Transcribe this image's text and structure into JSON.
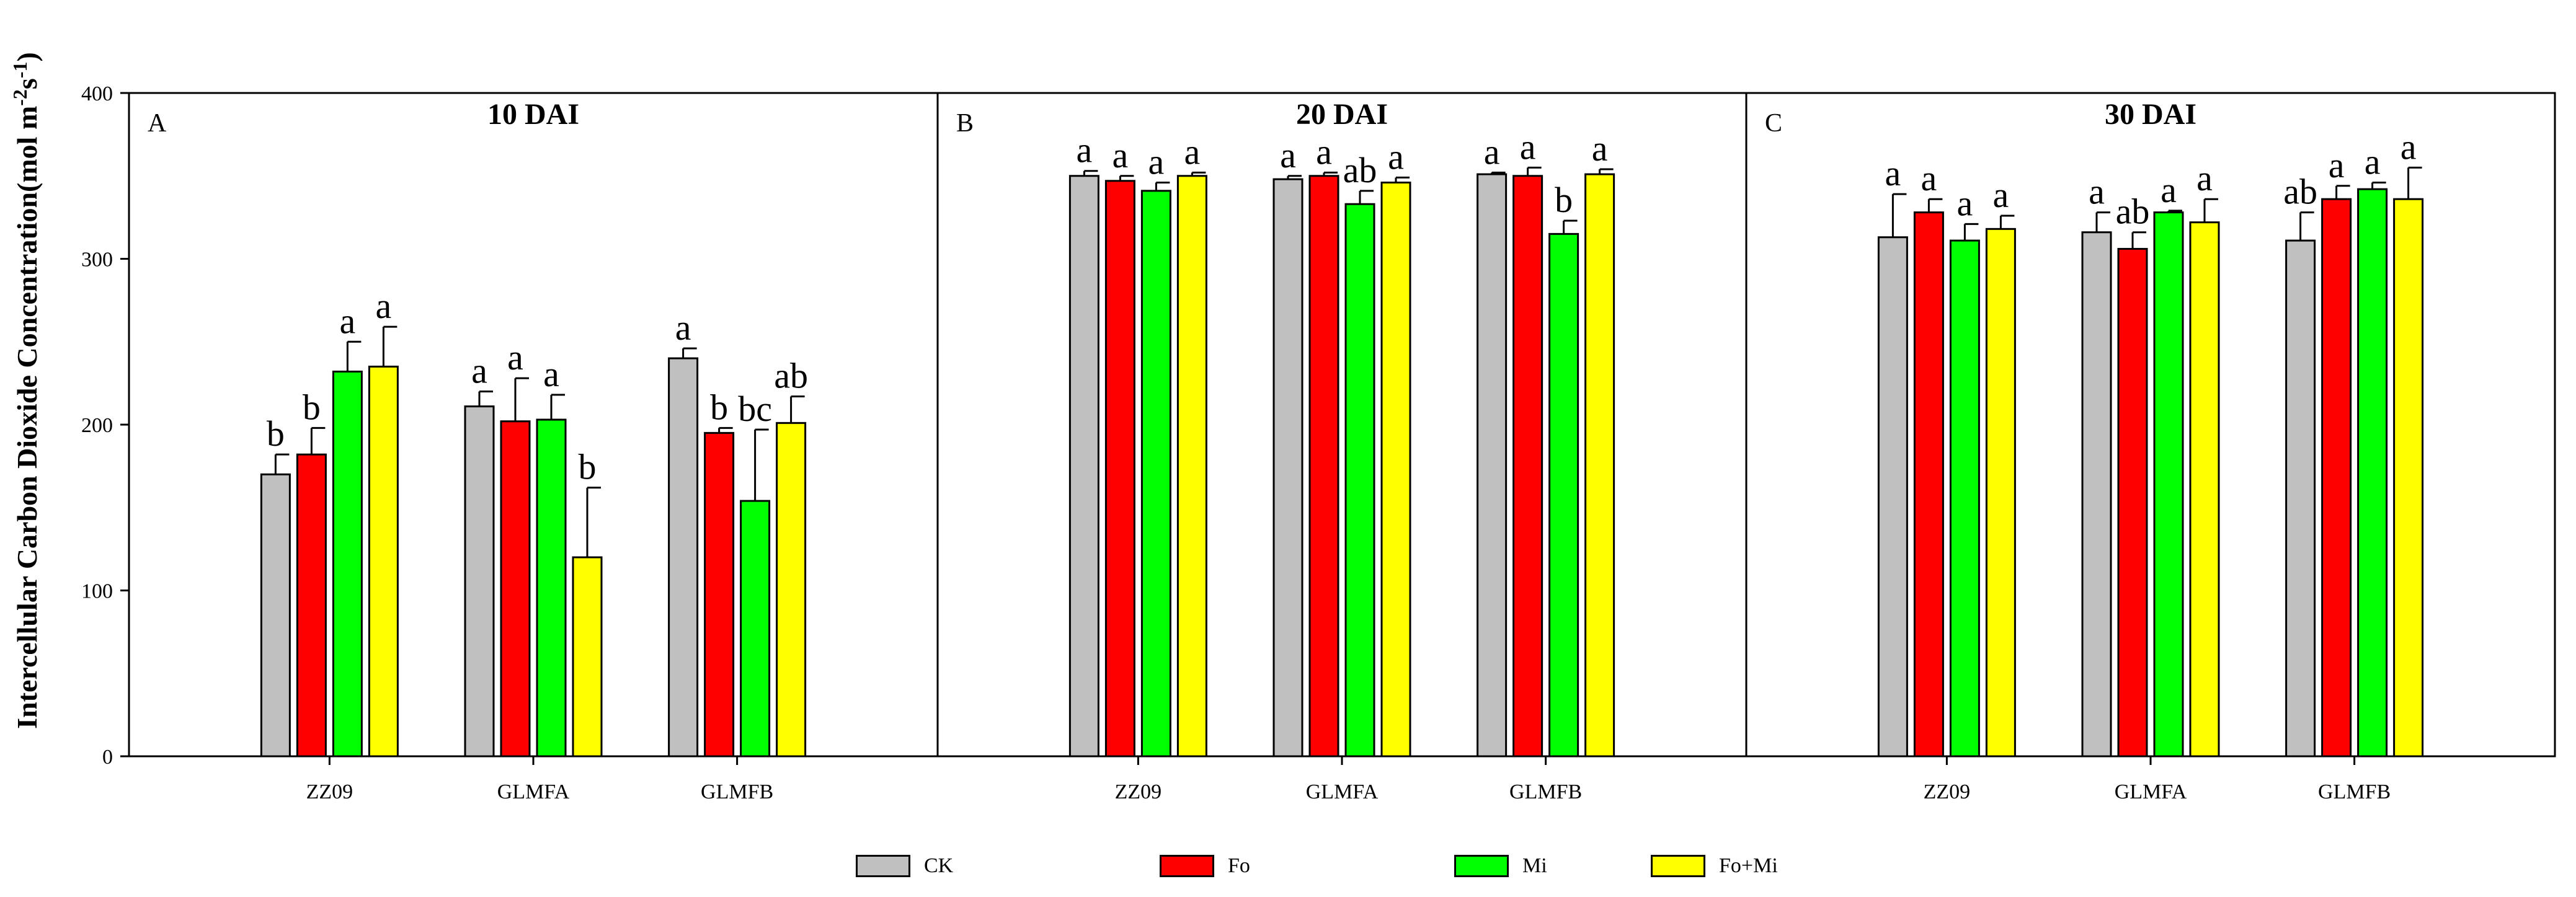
{
  "chart_data": {
    "type": "bar",
    "ylabel_prefix": "Intercellular Carbon Dioxide Concentration(mol m",
    "ylabel_exp1": "-2",
    "ylabel_mid": "s",
    "ylabel_exp2": "-1",
    "ylabel_suffix": ")",
    "ylim": [
      0,
      400
    ],
    "yticks": [
      "0",
      "100",
      "200",
      "300",
      "400"
    ],
    "categories": [
      "ZZ09",
      "GLMFA",
      "GLMFB"
    ],
    "series_names": [
      "CK",
      "Fo",
      "Mi",
      "Fo+Mi"
    ],
    "colors": [
      "#c0c0c0",
      "#ff0000",
      "#00ff00",
      "#ffff00"
    ],
    "panels": [
      {
        "letter": "A",
        "title": "10 DAI",
        "values": [
          [
            170,
            182,
            232,
            235
          ],
          [
            211,
            202,
            203,
            120
          ],
          [
            240,
            195,
            154,
            201
          ]
        ],
        "errors": [
          [
            12,
            16,
            18,
            24
          ],
          [
            9,
            26,
            15,
            42
          ],
          [
            6,
            3,
            43,
            16
          ]
        ],
        "letters": [
          [
            "b",
            "b",
            "a",
            "a"
          ],
          [
            "a",
            "a",
            "a",
            "b"
          ],
          [
            "a",
            "b",
            "bc",
            "ab"
          ]
        ]
      },
      {
        "letter": "B",
        "title": "20 DAI",
        "values": [
          [
            350,
            347,
            341,
            350
          ],
          [
            348,
            350,
            333,
            346
          ],
          [
            351,
            350,
            315,
            351
          ]
        ],
        "errors": [
          [
            3,
            3,
            5,
            2
          ],
          [
            2,
            2,
            8,
            3
          ],
          [
            1,
            5,
            8,
            3
          ]
        ],
        "letters": [
          [
            "a",
            "a",
            "a",
            "a"
          ],
          [
            "a",
            "a",
            "ab",
            "a"
          ],
          [
            "a",
            "a",
            "b",
            "a"
          ]
        ]
      },
      {
        "letter": "C",
        "title": "30 DAI",
        "values": [
          [
            313,
            328,
            311,
            318
          ],
          [
            316,
            306,
            328,
            322
          ],
          [
            311,
            336,
            342,
            336
          ]
        ],
        "errors": [
          [
            26,
            8,
            10,
            8
          ],
          [
            12,
            10,
            1,
            14
          ],
          [
            17,
            8,
            4,
            19
          ]
        ],
        "letters": [
          [
            "a",
            "a",
            "a",
            "a"
          ],
          [
            "a",
            "ab",
            "a",
            "a"
          ],
          [
            "ab",
            "a",
            "a",
            "a"
          ]
        ]
      }
    ]
  },
  "legend": [
    {
      "label": "CK",
      "color": "#c0c0c0"
    },
    {
      "label": "Fo",
      "color": "#ff0000"
    },
    {
      "label": "Mi",
      "color": "#00ff00"
    },
    {
      "label": "Fo+Mi",
      "color": "#ffff00"
    }
  ]
}
